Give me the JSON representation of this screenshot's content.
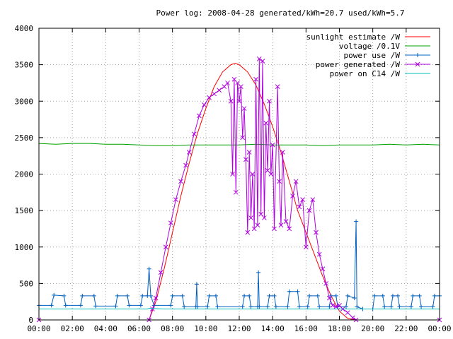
{
  "chart_data": {
    "type": "line",
    "title": "Power log: 2008-04-28 generated/kWh=20.7 used/kWh=5.7",
    "xlabel": "",
    "ylabel": "",
    "xlim": [
      0,
      24
    ],
    "ylim": [
      0,
      4000
    ],
    "grid": true,
    "legend_position": "top-right",
    "x_ticks": [
      "00:00",
      "02:00",
      "04:00",
      "06:00",
      "08:00",
      "10:00",
      "12:00",
      "14:00",
      "16:00",
      "18:00",
      "20:00",
      "22:00",
      "00:00"
    ],
    "y_ticks": [
      0,
      500,
      1000,
      1500,
      2000,
      2500,
      3000,
      3500,
      4000
    ],
    "series": [
      {
        "name": "sunlight estimate /W",
        "color": "#ff0000",
        "style": "line",
        "points": [
          [
            6.6,
            0
          ],
          [
            7,
            250
          ],
          [
            7.5,
            700
          ],
          [
            8,
            1200
          ],
          [
            8.5,
            1700
          ],
          [
            9,
            2150
          ],
          [
            9.5,
            2560
          ],
          [
            10,
            2900
          ],
          [
            10.5,
            3200
          ],
          [
            11,
            3400
          ],
          [
            11.5,
            3500
          ],
          [
            11.75,
            3520
          ],
          [
            12,
            3500
          ],
          [
            12.5,
            3400
          ],
          [
            13,
            3220
          ],
          [
            13.5,
            2960
          ],
          [
            14,
            2650
          ],
          [
            14.5,
            2300
          ],
          [
            15,
            1900
          ],
          [
            15.5,
            1500
          ],
          [
            16,
            1200
          ],
          [
            16.5,
            900
          ],
          [
            17,
            600
          ],
          [
            17.5,
            330
          ],
          [
            18,
            120
          ],
          [
            18.5,
            20
          ],
          [
            19,
            0
          ]
        ]
      },
      {
        "name": "voltage /0.1V",
        "color": "#00a000",
        "style": "line",
        "points": [
          [
            0,
            2420
          ],
          [
            1,
            2410
          ],
          [
            2,
            2420
          ],
          [
            3,
            2420
          ],
          [
            4,
            2410
          ],
          [
            5,
            2410
          ],
          [
            6,
            2400
          ],
          [
            7,
            2390
          ],
          [
            8,
            2390
          ],
          [
            9,
            2400
          ],
          [
            10,
            2400
          ],
          [
            11,
            2400
          ],
          [
            12,
            2400
          ],
          [
            13,
            2410
          ],
          [
            14,
            2400
          ],
          [
            15,
            2400
          ],
          [
            16,
            2400
          ],
          [
            17,
            2390
          ],
          [
            18,
            2400
          ],
          [
            19,
            2400
          ],
          [
            20,
            2400
          ],
          [
            21,
            2410
          ],
          [
            22,
            2400
          ],
          [
            23,
            2410
          ],
          [
            24,
            2400
          ]
        ]
      },
      {
        "name": "power use /W",
        "color": "#0060c0",
        "style": "linepoints",
        "points": [
          [
            0,
            200
          ],
          [
            0.75,
            200
          ],
          [
            0.9,
            340
          ],
          [
            1.5,
            330
          ],
          [
            1.6,
            200
          ],
          [
            2.5,
            200
          ],
          [
            2.6,
            330
          ],
          [
            3.3,
            330
          ],
          [
            3.4,
            190
          ],
          [
            4.6,
            190
          ],
          [
            4.7,
            330
          ],
          [
            5.3,
            330
          ],
          [
            5.4,
            200
          ],
          [
            6.1,
            200
          ],
          [
            6.2,
            330
          ],
          [
            6.5,
            330
          ],
          [
            6.6,
            700
          ],
          [
            6.7,
            330
          ],
          [
            6.9,
            200
          ],
          [
            7.9,
            200
          ],
          [
            8,
            330
          ],
          [
            8.6,
            330
          ],
          [
            8.7,
            180
          ],
          [
            9.4,
            180
          ],
          [
            9.45,
            490
          ],
          [
            9.5,
            180
          ],
          [
            10.1,
            180
          ],
          [
            10.2,
            330
          ],
          [
            10.6,
            330
          ],
          [
            10.7,
            180
          ],
          [
            12.2,
            180
          ],
          [
            12.3,
            330
          ],
          [
            12.6,
            330
          ],
          [
            12.7,
            180
          ],
          [
            13.1,
            180
          ],
          [
            13.15,
            650
          ],
          [
            13.2,
            180
          ],
          [
            13.7,
            180
          ],
          [
            13.8,
            330
          ],
          [
            14.1,
            330
          ],
          [
            14.2,
            180
          ],
          [
            14.9,
            180
          ],
          [
            15,
            390
          ],
          [
            15.5,
            390
          ],
          [
            15.6,
            180
          ],
          [
            16.1,
            180
          ],
          [
            16.2,
            330
          ],
          [
            16.7,
            330
          ],
          [
            16.8,
            180
          ],
          [
            17.4,
            180
          ],
          [
            17.5,
            330
          ],
          [
            17.8,
            330
          ],
          [
            17.9,
            180
          ],
          [
            18.4,
            180
          ],
          [
            18.5,
            330
          ],
          [
            18.9,
            300
          ],
          [
            19,
            1350
          ],
          [
            19.05,
            180
          ],
          [
            19.4,
            150
          ],
          [
            20,
            150
          ],
          [
            20.1,
            330
          ],
          [
            20.6,
            330
          ],
          [
            20.7,
            180
          ],
          [
            21.1,
            180
          ],
          [
            21.2,
            330
          ],
          [
            21.5,
            330
          ],
          [
            21.6,
            180
          ],
          [
            22.3,
            180
          ],
          [
            22.4,
            330
          ],
          [
            22.8,
            330
          ],
          [
            22.9,
            180
          ],
          [
            23.6,
            180
          ],
          [
            23.7,
            330
          ],
          [
            24,
            330
          ]
        ]
      },
      {
        "name": "power generated /W",
        "color": "#b000e0",
        "style": "linepoints",
        "points": [
          [
            0,
            0
          ],
          [
            6.6,
            0
          ],
          [
            6.8,
            150
          ],
          [
            7,
            300
          ],
          [
            7.3,
            650
          ],
          [
            7.6,
            1000
          ],
          [
            7.9,
            1330
          ],
          [
            8.2,
            1650
          ],
          [
            8.5,
            1900
          ],
          [
            8.8,
            2120
          ],
          [
            9,
            2300
          ],
          [
            9.3,
            2550
          ],
          [
            9.6,
            2800
          ],
          [
            9.9,
            2950
          ],
          [
            10.2,
            3050
          ],
          [
            10.5,
            3100
          ],
          [
            10.8,
            3150
          ],
          [
            11.1,
            3200
          ],
          [
            11.3,
            3250
          ],
          [
            11.5,
            3000
          ],
          [
            11.6,
            2000
          ],
          [
            11.7,
            3300
          ],
          [
            11.8,
            1750
          ],
          [
            11.9,
            3250
          ],
          [
            12,
            3000
          ],
          [
            12.1,
            3200
          ],
          [
            12.2,
            2500
          ],
          [
            12.3,
            2900
          ],
          [
            12.4,
            2200
          ],
          [
            12.5,
            1200
          ],
          [
            12.6,
            2300
          ],
          [
            12.7,
            1400
          ],
          [
            12.8,
            2000
          ],
          [
            12.9,
            1250
          ],
          [
            13,
            3300
          ],
          [
            13.1,
            1300
          ],
          [
            13.2,
            3580
          ],
          [
            13.3,
            1450
          ],
          [
            13.4,
            3550
          ],
          [
            13.5,
            1400
          ],
          [
            13.6,
            2700
          ],
          [
            13.7,
            2050
          ],
          [
            13.8,
            3000
          ],
          [
            13.9,
            2000
          ],
          [
            14,
            2400
          ],
          [
            14.1,
            1250
          ],
          [
            14.3,
            3200
          ],
          [
            14.4,
            1900
          ],
          [
            14.5,
            1300
          ],
          [
            14.6,
            2300
          ],
          [
            14.8,
            1350
          ],
          [
            15,
            1250
          ],
          [
            15.2,
            1700
          ],
          [
            15.4,
            1900
          ],
          [
            15.6,
            1550
          ],
          [
            15.8,
            1650
          ],
          [
            16,
            1000
          ],
          [
            16.2,
            1500
          ],
          [
            16.4,
            1650
          ],
          [
            16.6,
            1200
          ],
          [
            16.8,
            900
          ],
          [
            17,
            700
          ],
          [
            17.2,
            500
          ],
          [
            17.4,
            300
          ],
          [
            17.6,
            200
          ],
          [
            17.8,
            180
          ],
          [
            18,
            200
          ],
          [
            18.2,
            150
          ],
          [
            18.5,
            100
          ],
          [
            18.8,
            30
          ],
          [
            19,
            0
          ],
          [
            24,
            0
          ]
        ]
      },
      {
        "name": "power on C14 /W",
        "color": "#00c0c0",
        "style": "line",
        "points": [
          [
            0,
            150
          ],
          [
            6.5,
            150
          ],
          [
            6.6,
            160
          ],
          [
            7.5,
            150
          ],
          [
            24,
            150
          ]
        ]
      }
    ]
  }
}
